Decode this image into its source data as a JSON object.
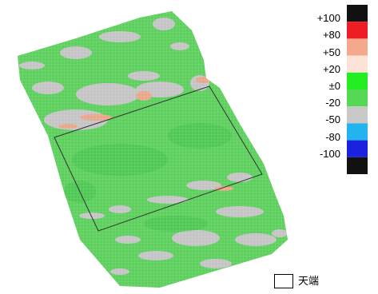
{
  "colorbar": {
    "labels": [
      "+100",
      "+80",
      "+50",
      "+20",
      "±0",
      "-20",
      "-50",
      "-80",
      "-100"
    ],
    "colors": [
      "#111111",
      "#ee1c24",
      "#f4a98c",
      "#fde2d8",
      "#22ee22",
      "#55d955",
      "#c8c8c8",
      "#22b4ee",
      "#1a22e0",
      "#111111"
    ]
  },
  "map_colors": {
    "green": "#5ccf5c",
    "green_dark": "#3ebf4a",
    "gray": "#c4c4c4",
    "salmon": "#e8a68a",
    "outline": "#333333"
  },
  "legend": {
    "label": "天端"
  }
}
